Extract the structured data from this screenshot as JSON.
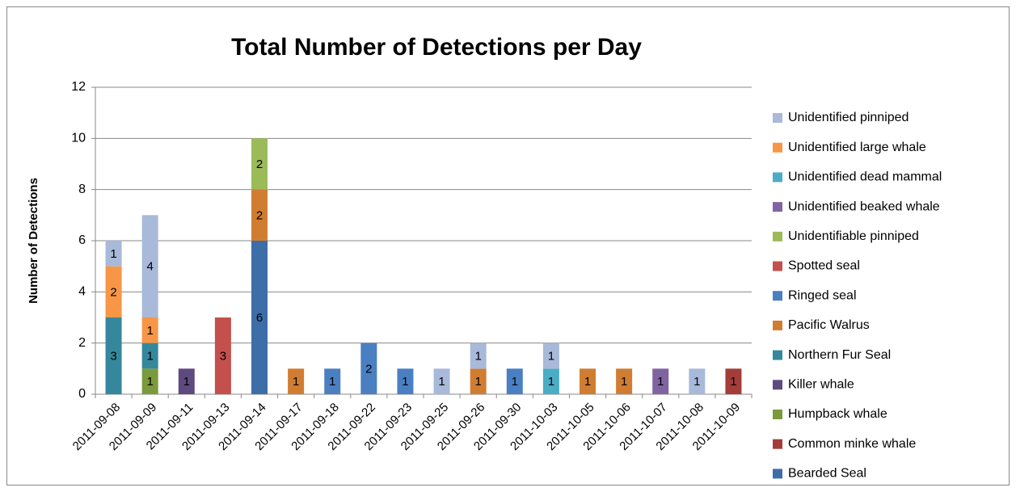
{
  "chart_data": {
    "type": "bar",
    "stacked": true,
    "title": "Total Number of Detections per Day",
    "y_label": "Number of Detections",
    "categories": [
      "2011-09-08",
      "2011-09-09",
      "2011-09-11",
      "2011-09-13",
      "2011-09-14",
      "2011-09-17",
      "2011-09-18",
      "2011-09-22",
      "2011-09-23",
      "2011-09-25",
      "2011-09-26",
      "2011-09-30",
      "2011-10-03",
      "2011-10-05",
      "2011-10-06",
      "2011-10-07",
      "2011-10-08",
      "2011-10-09"
    ],
    "series": [
      {
        "name": "Bearded Seal",
        "color": "#3d6ea8",
        "values": [
          null,
          null,
          null,
          null,
          6,
          null,
          null,
          null,
          null,
          null,
          null,
          null,
          null,
          null,
          null,
          null,
          null,
          null
        ]
      },
      {
        "name": "Common minke whale",
        "color": "#a33d3a",
        "values": [
          null,
          null,
          null,
          null,
          null,
          null,
          null,
          null,
          null,
          null,
          null,
          null,
          null,
          null,
          null,
          null,
          null,
          1
        ]
      },
      {
        "name": "Humpback whale",
        "color": "#7a9a3c",
        "values": [
          null,
          1,
          null,
          null,
          null,
          null,
          null,
          null,
          null,
          null,
          null,
          null,
          null,
          null,
          null,
          null,
          null,
          null
        ]
      },
      {
        "name": "Killer whale",
        "color": "#5f4a80",
        "values": [
          null,
          null,
          1,
          null,
          null,
          null,
          null,
          null,
          null,
          null,
          null,
          null,
          null,
          null,
          null,
          null,
          null,
          null
        ]
      },
      {
        "name": "Northern Fur Seal",
        "color": "#35889c",
        "values": [
          3,
          1,
          null,
          null,
          null,
          null,
          null,
          null,
          null,
          null,
          null,
          null,
          null,
          null,
          null,
          null,
          null,
          null
        ]
      },
      {
        "name": "Pacific Walrus",
        "color": "#d07d32",
        "values": [
          null,
          null,
          null,
          null,
          2,
          1,
          null,
          null,
          null,
          null,
          1,
          null,
          null,
          1,
          1,
          null,
          null,
          null
        ]
      },
      {
        "name": "Ringed seal",
        "color": "#4a80c2",
        "values": [
          null,
          null,
          null,
          null,
          null,
          null,
          1,
          2,
          1,
          null,
          null,
          1,
          null,
          null,
          null,
          null,
          null,
          null
        ]
      },
      {
        "name": "Spotted seal",
        "color": "#c3504d",
        "values": [
          null,
          null,
          null,
          3,
          null,
          null,
          null,
          null,
          null,
          null,
          null,
          null,
          null,
          null,
          null,
          null,
          null,
          null
        ]
      },
      {
        "name": "Unidentifiable pinniped",
        "color": "#9bbb59",
        "values": [
          null,
          null,
          null,
          null,
          2,
          null,
          null,
          null,
          null,
          null,
          null,
          null,
          null,
          null,
          null,
          null,
          null,
          null
        ]
      },
      {
        "name": "Unidentified beaked whale",
        "color": "#8064a2",
        "values": [
          null,
          null,
          null,
          null,
          null,
          null,
          null,
          null,
          null,
          null,
          null,
          null,
          null,
          null,
          null,
          1,
          null,
          null
        ]
      },
      {
        "name": "Unidentified dead mammal",
        "color": "#4bacc6",
        "values": [
          null,
          null,
          null,
          null,
          null,
          null,
          null,
          null,
          null,
          null,
          null,
          null,
          1,
          null,
          null,
          null,
          null,
          null
        ]
      },
      {
        "name": "Unidentified large whale",
        "color": "#f79646",
        "values": [
          2,
          1,
          null,
          null,
          null,
          null,
          null,
          null,
          null,
          null,
          null,
          null,
          null,
          null,
          null,
          null,
          null,
          null
        ]
      },
      {
        "name": "Unidentified pinniped",
        "color": "#a8b9d9",
        "values": [
          1,
          4,
          null,
          null,
          null,
          null,
          null,
          null,
          null,
          1,
          1,
          null,
          1,
          null,
          null,
          null,
          1,
          null
        ]
      }
    ],
    "ylim": [
      0,
      12
    ],
    "yticks": [
      0,
      2,
      4,
      6,
      8,
      10,
      12
    ],
    "grid": true,
    "legend": "right"
  }
}
